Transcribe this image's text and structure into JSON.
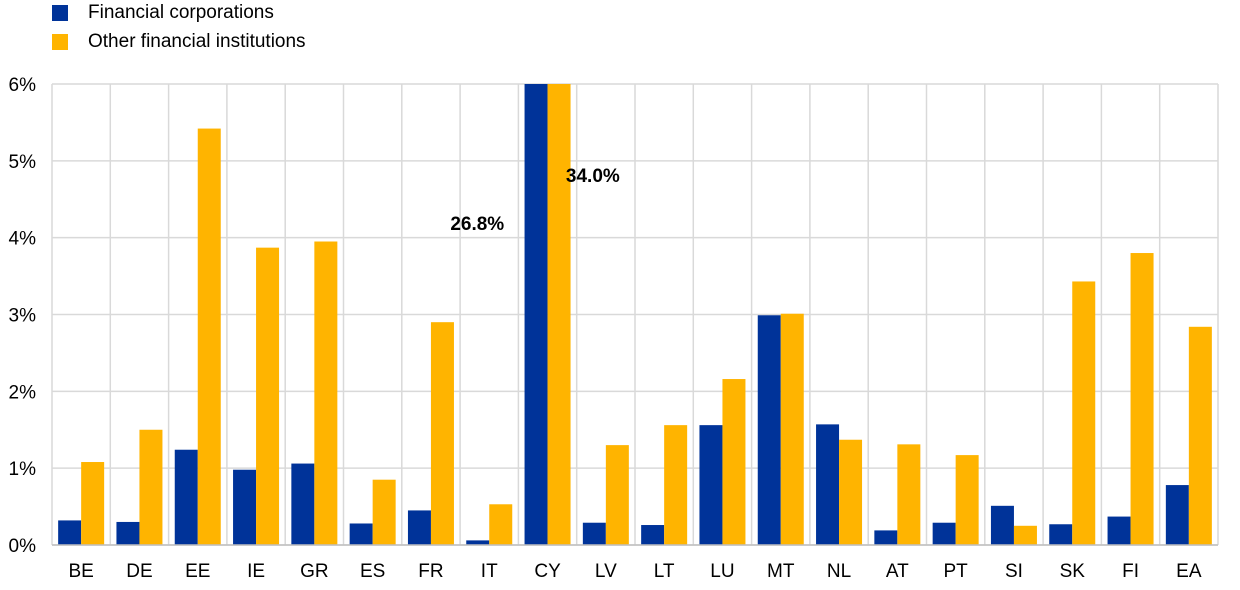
{
  "legend": {
    "items": [
      {
        "label": "Financial corporations",
        "color": "#003399"
      },
      {
        "label": "Other financial institutions",
        "color": "#FFB400"
      }
    ]
  },
  "chart_data": {
    "type": "bar",
    "categories": [
      "BE",
      "DE",
      "EE",
      "IE",
      "GR",
      "ES",
      "FR",
      "IT",
      "CY",
      "LV",
      "LT",
      "LU",
      "MT",
      "NL",
      "AT",
      "PT",
      "SI",
      "SK",
      "FI",
      "EA"
    ],
    "series": [
      {
        "name": "Financial corporations",
        "color": "#003399",
        "values": [
          0.32,
          0.3,
          1.24,
          0.98,
          1.06,
          0.28,
          0.45,
          0.06,
          6.0,
          0.29,
          0.26,
          1.56,
          2.99,
          1.57,
          0.19,
          0.29,
          0.51,
          0.27,
          0.37,
          0.78
        ]
      },
      {
        "name": "Other financial institutions",
        "color": "#FFB400",
        "values": [
          1.08,
          1.5,
          5.42,
          3.87,
          3.95,
          0.85,
          2.9,
          0.53,
          6.0,
          1.3,
          1.56,
          2.16,
          3.01,
          1.37,
          1.31,
          1.17,
          0.25,
          3.43,
          3.8,
          2.84
        ]
      }
    ],
    "yticks": [
      "0%",
      "1%",
      "2%",
      "3%",
      "4%",
      "5%",
      "6%"
    ],
    "ylim": [
      0,
      6
    ],
    "annotations": [
      {
        "text": "26.8%",
        "category": "IT"
      },
      {
        "text": "34.0%",
        "category": "LV"
      }
    ],
    "grid": true,
    "title": "",
    "xlabel": "",
    "ylabel": ""
  }
}
